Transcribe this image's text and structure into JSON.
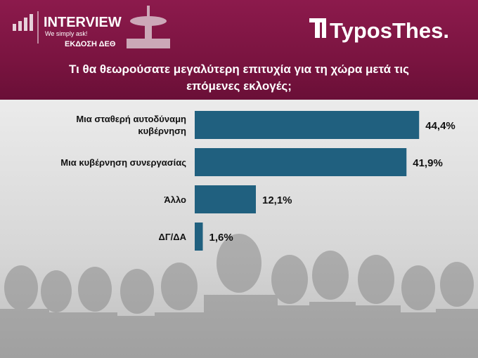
{
  "header": {
    "brand": "INTERVIEW",
    "tagline": "We simply ask!",
    "edition": "ΕΚΔΟΣΗ ΔΕΘ",
    "logo": "TyposThes."
  },
  "chart_data": {
    "type": "bar",
    "orientation": "horizontal",
    "title": "Τι θα θεωρούσατε μεγαλύτερη επιτυχία για τη χώρα μετά τις επόμενες εκλογές;",
    "categories": [
      "Μια σταθερή αυτοδύναμη κυβέρνηση",
      "Μια κυβέρνηση συνεργασίας",
      "Άλλο",
      "ΔΓ/ΔΑ"
    ],
    "values": [
      44.4,
      41.9,
      12.1,
      1.6
    ],
    "value_labels": [
      "44,4%",
      "41,9%",
      "12,1%",
      "1,6%"
    ],
    "color": "#20607f"
  }
}
